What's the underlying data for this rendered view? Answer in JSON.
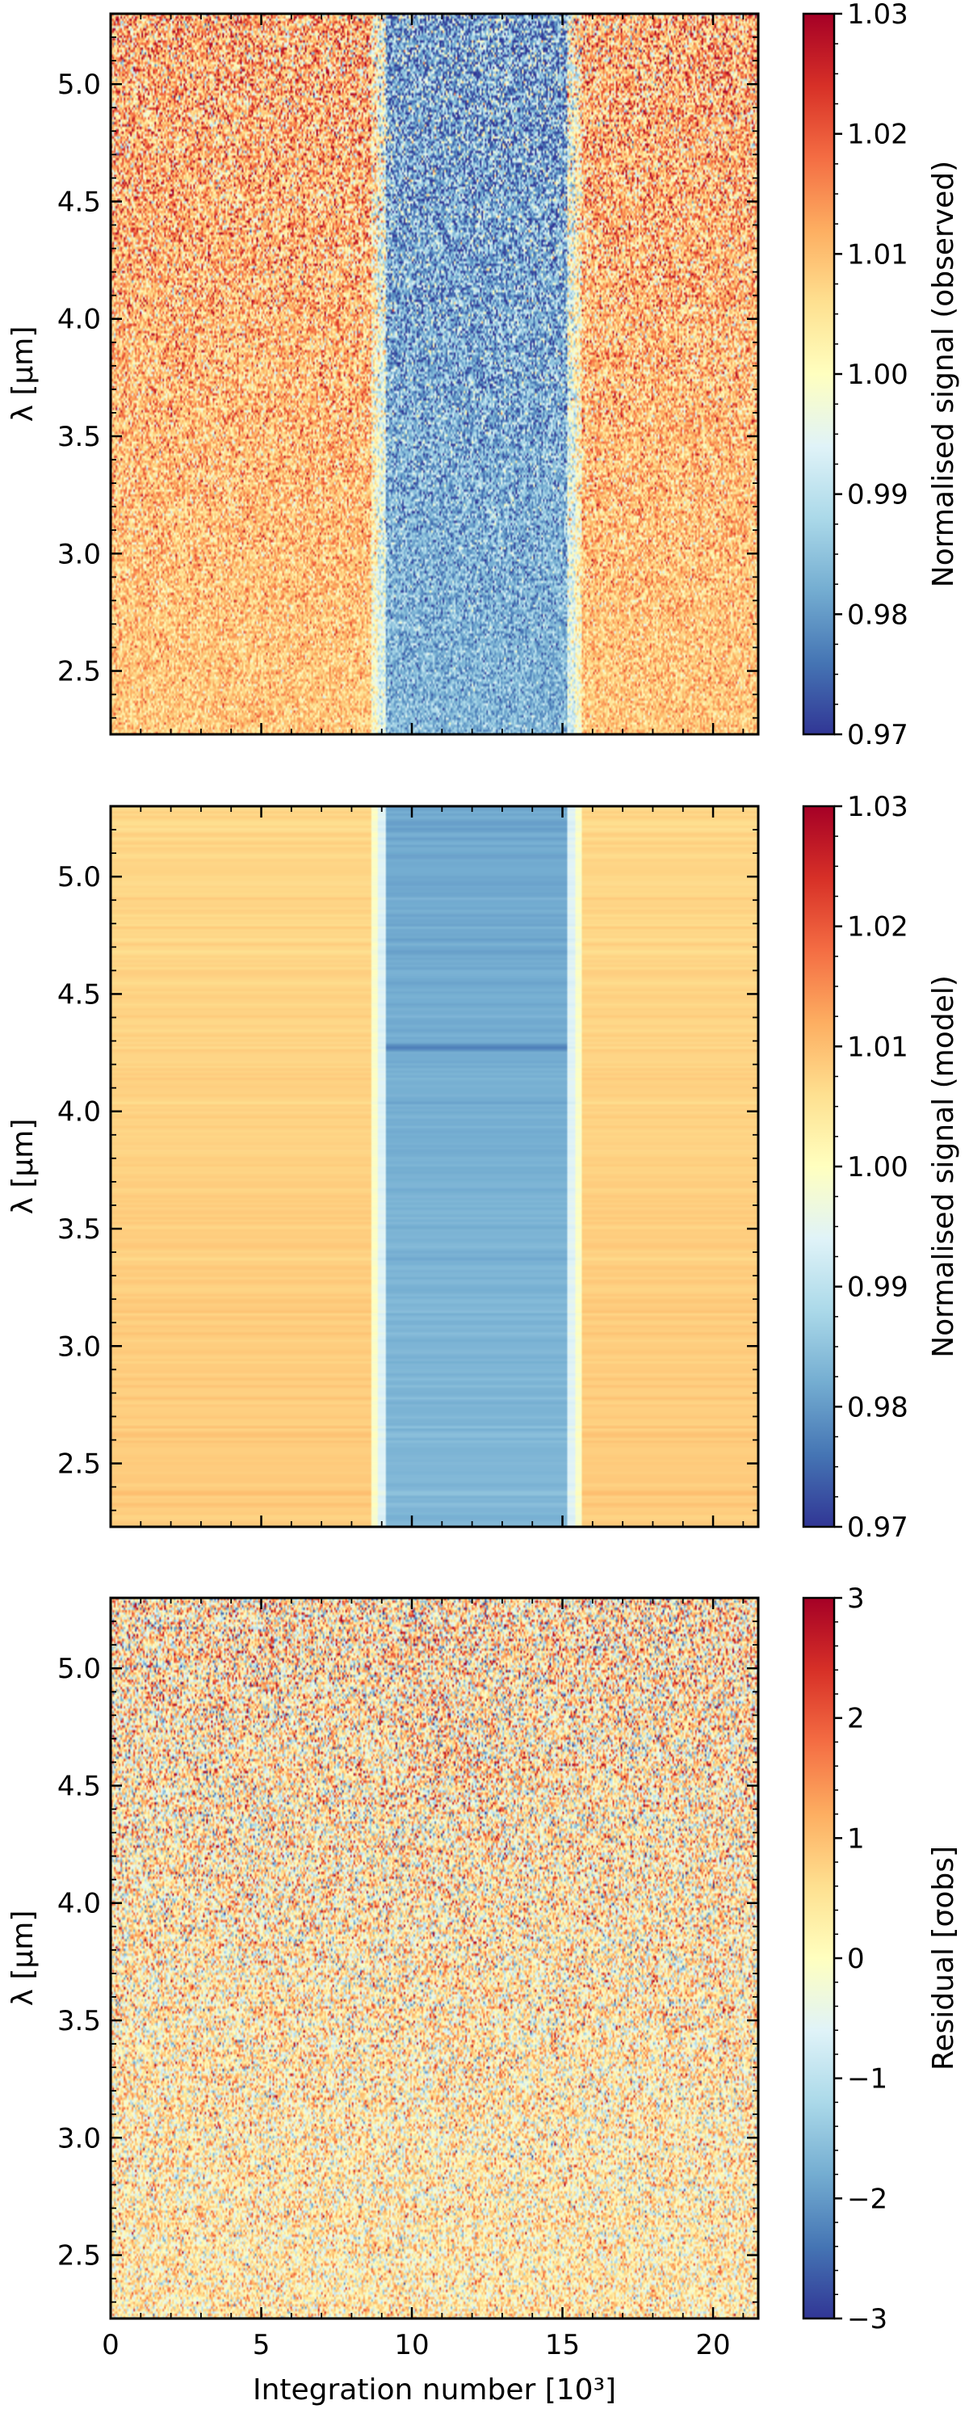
{
  "chart_data": [
    {
      "type": "heatmap",
      "content": "observed",
      "xlabel": "",
      "ylabel": "λ [μm]",
      "xlim": [
        0,
        21.5
      ],
      "ylim": [
        2.23,
        5.3
      ],
      "yticks": [
        "2.5",
        "3.0",
        "3.5",
        "4.0",
        "4.5",
        "5.0"
      ],
      "xticks": [],
      "transit_start": 9.0,
      "transit_end": 15.3,
      "colorbar": {
        "label": "Normalised signal (observed)",
        "range": [
          0.97,
          1.03
        ],
        "ticks": [
          "0.97",
          "0.98",
          "0.99",
          "1.00",
          "1.01",
          "1.02",
          "1.03"
        ]
      }
    },
    {
      "type": "heatmap",
      "content": "model",
      "xlabel": "",
      "ylabel": "λ [μm]",
      "xlim": [
        0,
        21.5
      ],
      "ylim": [
        2.23,
        5.3
      ],
      "yticks": [
        "2.5",
        "3.0",
        "3.5",
        "4.0",
        "4.5",
        "5.0"
      ],
      "xticks": [],
      "transit_start": 9.0,
      "transit_end": 15.3,
      "colorbar": {
        "label": "Normalised signal (model)",
        "range": [
          0.97,
          1.03
        ],
        "ticks": [
          "0.97",
          "0.98",
          "0.99",
          "1.00",
          "1.01",
          "1.02",
          "1.03"
        ]
      }
    },
    {
      "type": "heatmap",
      "content": "residual",
      "xlabel": "Integration number [10³]",
      "ylabel": "λ [μm]",
      "xlim": [
        0,
        21.5
      ],
      "ylim": [
        2.23,
        5.3
      ],
      "yticks": [
        "2.5",
        "3.0",
        "3.5",
        "4.0",
        "4.5",
        "5.0"
      ],
      "xticks": [
        "0",
        "5",
        "10",
        "15",
        "20"
      ],
      "colorbar": {
        "label": "Residual [σobs]",
        "range": [
          -3,
          3
        ],
        "ticks": [
          "−3",
          "−2",
          "−1",
          "0",
          "1",
          "2",
          "3"
        ]
      }
    }
  ],
  "colormap": "RdYlBu_r",
  "colormap_stops": [
    "#313695",
    "#4575b4",
    "#74add1",
    "#abd9e9",
    "#e0f3f8",
    "#ffffbf",
    "#fee090",
    "#fdae61",
    "#f46d43",
    "#d73027",
    "#a50026"
  ]
}
